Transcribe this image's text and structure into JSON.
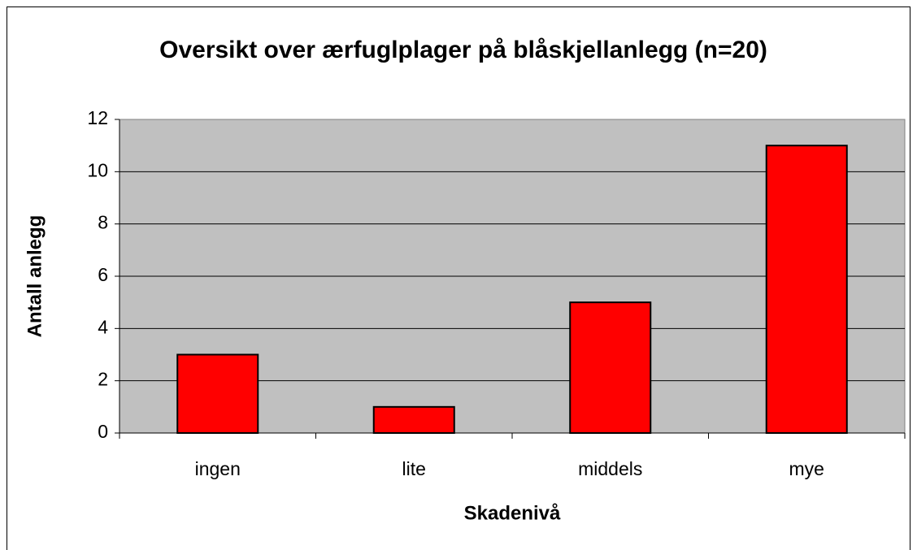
{
  "chart_data": {
    "type": "bar",
    "title": "Oversikt over ærfuglplager på blåskjellanlegg (n=20)",
    "x_label": "Skadenivå",
    "y_label": "Antall anlegg",
    "categories": [
      "ingen",
      "lite",
      "middels",
      "mye"
    ],
    "values": [
      3,
      1,
      5,
      11
    ],
    "color": "#ff0000",
    "ylim": [
      0,
      12
    ],
    "yticks": [
      0,
      2,
      4,
      6,
      8,
      10,
      12
    ],
    "grid": true
  }
}
